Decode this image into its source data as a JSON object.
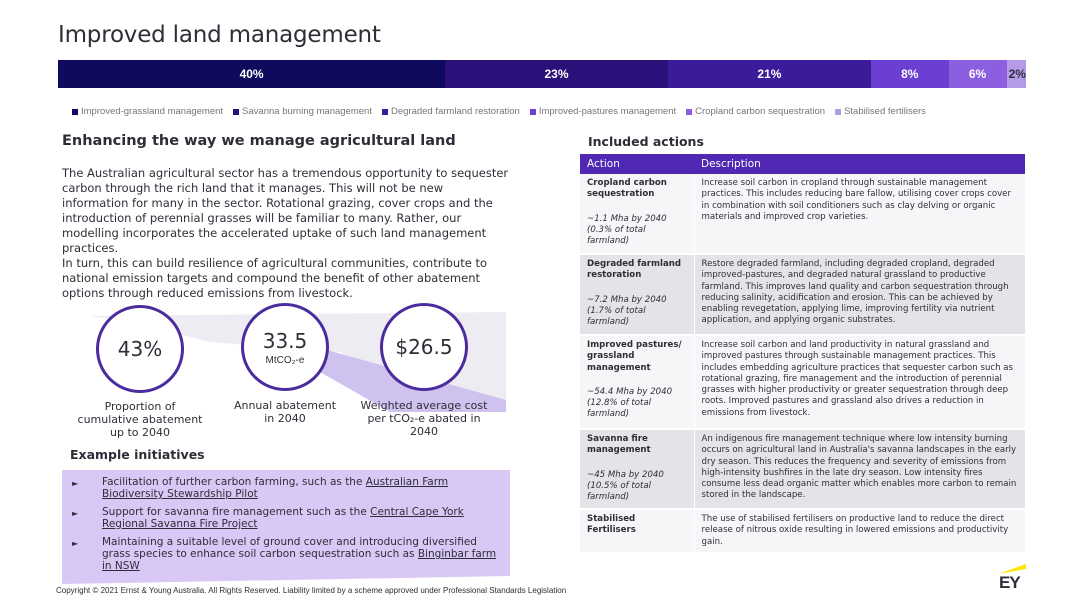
{
  "page": {
    "title": "Improved land management"
  },
  "breakdown": {
    "segments": [
      {
        "label": "40%",
        "value": 40,
        "color": "#0e0b5e"
      },
      {
        "label": "23%",
        "value": 23,
        "color": "#2c107a"
      },
      {
        "label": "21%",
        "value": 21,
        "color": "#3c1b9a"
      },
      {
        "label": "8%",
        "value": 8,
        "color": "#6b3fd1"
      },
      {
        "label": "6%",
        "value": 6,
        "color": "#8b5fe0"
      },
      {
        "label": "2%",
        "value": 2,
        "color": "#b59ae8"
      }
    ],
    "legend": [
      {
        "label": "Improved-grassland management",
        "color": "#0e0b5e"
      },
      {
        "label": "Savanna burning management",
        "color": "#2c107a"
      },
      {
        "label": "Degraded farmland restoration",
        "color": "#3c1b9a"
      },
      {
        "label": "Improved-pastures management",
        "color": "#6b3fd1"
      },
      {
        "label": "Cropland carbon sequestration",
        "color": "#8b5fe0"
      },
      {
        "label": "Stabilised fertilisers",
        "color": "#b59ae8"
      }
    ]
  },
  "intro": {
    "heading": "Enhancing the way we manage agricultural land",
    "paragraph1": "The Australian agricultural sector has a tremendous opportunity to sequester carbon through the rich land that it manages. This will not be new information for many in the sector. Rotational grazing, cover crops and the introduction of perennial grasses will be familiar to many. Rather, our modelling incorporates the accelerated uptake of such land management practices.",
    "paragraph2": "In turn, this can build resilience of agricultural communities, contribute to national emission targets and compound the benefit of other abatement options through reduced emissions from livestock."
  },
  "stats": [
    {
      "value": "43%",
      "unit": "",
      "caption": "Proportion of cumulative abatement up to 2040"
    },
    {
      "value": "33.5",
      "unit": "MtCO₂-e",
      "caption": "Annual abatement in 2040"
    },
    {
      "value": "$26.5",
      "unit": "",
      "caption": "Weighted average cost per tCO₂-e abated in 2040"
    }
  ],
  "examples": {
    "heading": "Example initiatives",
    "items": [
      {
        "prefix": "Facilitation of further carbon farming, such as the ",
        "link": "Australian Farm Biodiversity Stewardship Pilot",
        "suffix": ""
      },
      {
        "prefix": "Support for savanna fire management such as the ",
        "link": "Central Cape York Regional Savanna Fire Project",
        "suffix": ""
      },
      {
        "prefix": "Maintaining a suitable level of ground cover and introducing diversified grass species to enhance soil carbon sequestration such as ",
        "link": "Binginbar farm in NSW",
        "suffix": ""
      }
    ],
    "bullet_glyph": "►"
  },
  "actions": {
    "heading": "Included actions",
    "col_action": "Action",
    "col_description": "Description",
    "rows": [
      {
        "name": "Cropland carbon sequestration",
        "metric": "~1.1 Mha by 2040 (0.3% of total farmland)",
        "description": "Increase soil carbon in cropland through sustainable management practices. This includes reducing bare fallow, utilising cover crops cover in combination with soil conditioners such as clay delving or organic materials and improved crop varieties."
      },
      {
        "name": "Degraded farmland restoration",
        "metric": "~7.2 Mha by 2040 (1.7% of total farmland)",
        "description": "Restore degraded farmland, including degraded cropland, degraded improved-pastures, and degraded natural grassland to productive farmland. This improves land quality and carbon sequestration through reducing salinity, acidification and erosion. This can be achieved by enabling revegetation, applying lime, improving fertility via nutrient application, and applying organic substrates."
      },
      {
        "name": "Improved pastures/ grassland management",
        "metric": "~54.4 Mha by 2040 (12.8% of total farmland)",
        "description": "Increase soil carbon and land productivity in natural grassland and improved pastures through sustainable management practices. This includes embedding agriculture practices that sequester carbon such as rotational grazing, fire management and the introduction of perennial grasses with higher productivity or greater sequestration through deep roots.  Improved pastures and grassland also drives a reduction in emissions from livestock."
      },
      {
        "name": "Savanna fire management",
        "metric": "~45 Mha by 2040 (10.5% of total farmland)",
        "description": "An indigenous fire management technique where low intensity burning occurs on agricultural land in Australia's savanna landscapes in the early dry season. This reduces the frequency and severity of emissions from high-intensity bushfires in the late dry season. Low intensity fires consume less dead organic matter which enables more carbon to remain stored in the landscape."
      },
      {
        "name": "Stabilised Fertilisers",
        "metric": "",
        "description": "The use of stabilised fertilisers on productive land to reduce the direct release of nitrous oxide resulting in lowered emissions and productivity gain."
      }
    ]
  },
  "footer": {
    "copyright": "Copyright © 2021 Ernst & Young Australia. All Rights Reserved. Liability limited by a scheme approved under Professional Standards Legislation"
  },
  "brand": {
    "logo_text": "EY",
    "accent": "#ffe600"
  }
}
